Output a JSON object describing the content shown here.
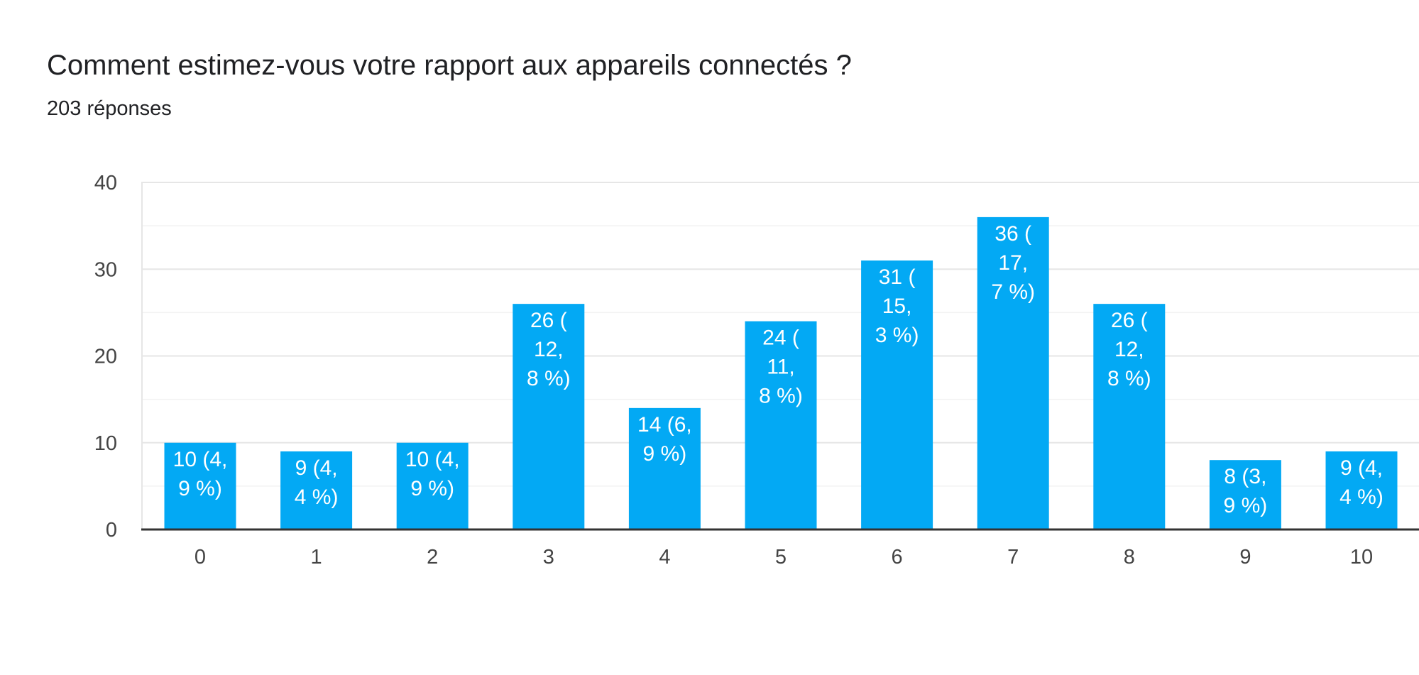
{
  "title": "Comment estimez-vous votre rapport aux appareils connectés ?",
  "subtitle": "203 réponses",
  "colors": {
    "bar": "#03a9f4",
    "grid_major": "#e6e6e6",
    "grid_minor": "#f2f2f2",
    "axis": "#333333"
  },
  "chart_data": {
    "type": "bar",
    "categories": [
      "0",
      "1",
      "2",
      "3",
      "4",
      "5",
      "6",
      "7",
      "8",
      "9",
      "10"
    ],
    "values": [
      10,
      9,
      10,
      26,
      14,
      24,
      31,
      36,
      26,
      8,
      9
    ],
    "data_labels": [
      [
        "10 (4,",
        "9 %)"
      ],
      [
        "9 (4,",
        "4 %)"
      ],
      [
        "10 (4,",
        "9 %)"
      ],
      [
        "26 (",
        "12,",
        "8 %)"
      ],
      [
        "14 (6,",
        "9 %)"
      ],
      [
        "24 (",
        "11,",
        "8 %)"
      ],
      [
        "31 (",
        "15,",
        "3 %)"
      ],
      [
        "36 (",
        "17,",
        "7 %)"
      ],
      [
        "26 (",
        "12,",
        "8 %)"
      ],
      [
        "8 (3,",
        "9 %)"
      ],
      [
        "9 (4,",
        "4 %)"
      ]
    ],
    "yticks": [
      0,
      10,
      20,
      30,
      40
    ],
    "ylim": [
      0,
      40
    ],
    "xlabel": "",
    "ylabel": "",
    "grid": true,
    "legend": "none"
  }
}
